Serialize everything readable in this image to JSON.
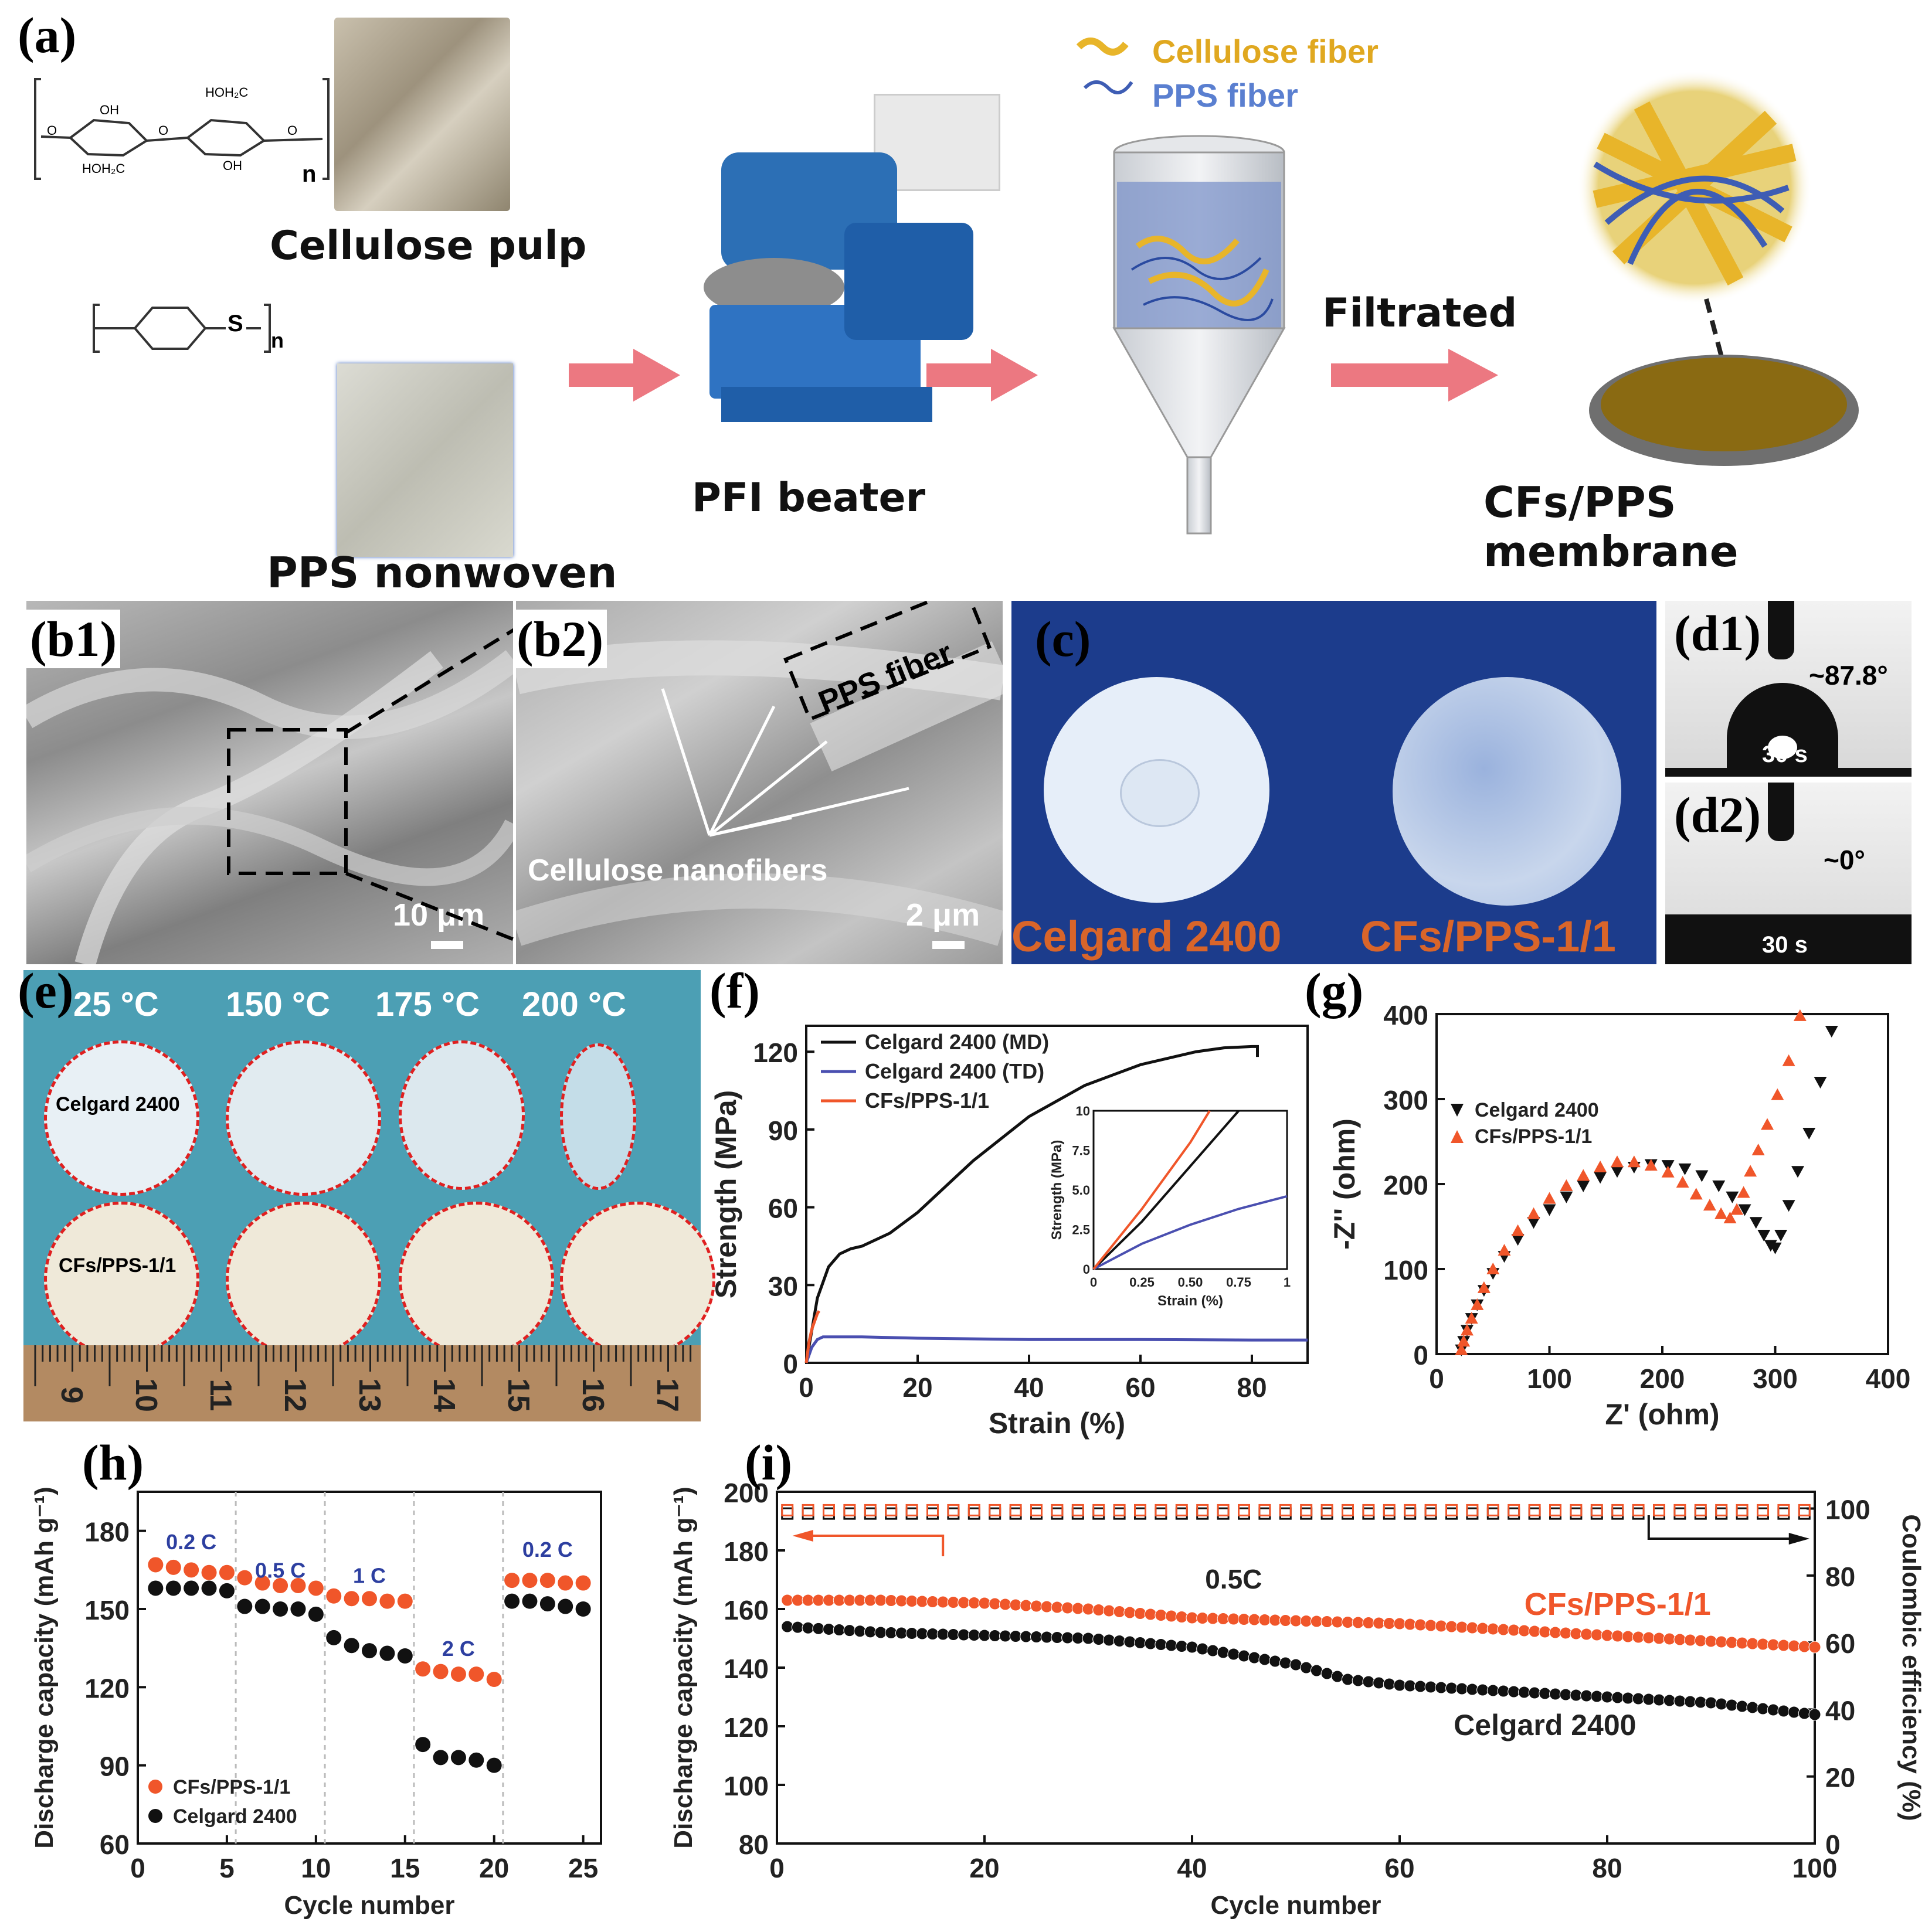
{
  "panel_a": {
    "label": "(a)",
    "cellulose_pulp": "Cellulose pulp",
    "pps_nonwoven": "PPS nonwoven",
    "pfi_beater": "PFI beater",
    "filtrated": "Filtrated",
    "membrane": "CFs/PPS membrane",
    "legend_cellulose": "Cellulose fiber",
    "legend_pps": "PPS fiber",
    "formula_n1": "n",
    "formula_s": "S",
    "formula_n2": "n"
  },
  "panel_b": {
    "label_b1": "(b1)",
    "label_b2": "(b2)",
    "scale_b1": "10 μm",
    "scale_b2": "2 μm",
    "pps_fiber": "PPS fiber",
    "nanofibers": "Cellulose nanofibers"
  },
  "panel_c": {
    "label": "(c)",
    "left": "Celgard 2400",
    "right": "CFs/PPS-1/1"
  },
  "panel_d": {
    "label_d1": "(d1)",
    "label_d2": "(d2)",
    "angle_d1": "~87.8°",
    "angle_d2": "~0°",
    "time_d1": "30 s",
    "time_d2": "30 s"
  },
  "panel_e": {
    "label": "(e)",
    "temps": [
      "25 °C",
      "150 °C",
      "175 °C",
      "200 °C"
    ],
    "row1": "Celgard 2400",
    "row2": "CFs/PPS-1/1",
    "ruler": [
      "9",
      "10",
      "11",
      "12",
      "13",
      "14",
      "15",
      "16",
      "17"
    ]
  },
  "colors": {
    "black_series": "#111111",
    "blue_series": "#4a4fb0",
    "orange_series": "#f0562a",
    "pink_arrow": "#e9606b",
    "teal_bg": "#4c9fb4",
    "navy_bg": "#1c3c8c",
    "label_blue": "#2d3fa0"
  },
  "chart_data": [
    {
      "panel": "(f)",
      "type": "line",
      "xlabel": "Strain (%)",
      "ylabel": "Strength (MPa)",
      "xlim": [
        0,
        90
      ],
      "ylim": [
        0,
        130
      ],
      "xticks": [
        0,
        20,
        40,
        60,
        80
      ],
      "yticks": [
        0,
        30,
        60,
        90,
        120
      ],
      "legend": "top-left",
      "series": [
        {
          "name": "Celgard 2400 (MD)",
          "x": [
            0,
            2,
            4,
            6,
            8,
            10,
            15,
            20,
            25,
            30,
            40,
            50,
            60,
            70,
            75,
            80,
            81,
            81
          ],
          "y": [
            0,
            25,
            37,
            42,
            44,
            45,
            50,
            58,
            68,
            78,
            95,
            107,
            115,
            120,
            121.5,
            122,
            122,
            118
          ]
        },
        {
          "name": "Celgard 2400 (TD)",
          "x": [
            0,
            1,
            2,
            3,
            5,
            10,
            20,
            40,
            60,
            80,
            90
          ],
          "y": [
            0,
            6,
            9,
            10,
            10,
            10,
            9.5,
            9,
            9,
            8.8,
            8.8
          ]
        },
        {
          "name": "CFs/PPS-1/1",
          "x": [
            0,
            0.5,
            1,
            1.5,
            2,
            2.3
          ],
          "y": [
            0,
            8,
            13,
            16,
            19,
            20
          ]
        }
      ],
      "inset": {
        "xlabel": "Strain (%)",
        "ylabel": "Strength (MPa)",
        "xlim": [
          0,
          1
        ],
        "ylim": [
          0,
          10
        ],
        "xticks": [
          "0",
          "0.25",
          "0.50",
          "0.75",
          "1"
        ],
        "yticks": [
          "0",
          "2.5",
          "5.0",
          "7.5",
          "10"
        ],
        "series": [
          {
            "name": "Celgard 2400 (MD)",
            "x": [
              0,
              0.25,
              0.5,
              0.75
            ],
            "y": [
              0,
              3.0,
              6.5,
              10
            ]
          },
          {
            "name": "Celgard 2400 (TD)",
            "x": [
              0,
              0.25,
              0.5,
              0.75,
              1.0
            ],
            "y": [
              0,
              1.6,
              2.8,
              3.8,
              4.6
            ]
          },
          {
            "name": "CFs/PPS-1/1",
            "x": [
              0,
              0.25,
              0.5,
              0.6
            ],
            "y": [
              0,
              3.8,
              8.0,
              10
            ]
          }
        ]
      }
    },
    {
      "panel": "(g)",
      "type": "scatter",
      "xlabel": "Z' (ohm)",
      "ylabel": "-Z'' (ohm)",
      "xlim": [
        0,
        400
      ],
      "ylim": [
        0,
        400
      ],
      "xticks": [
        0,
        100,
        200,
        300,
        400
      ],
      "yticks": [
        0,
        100,
        200,
        300,
        400
      ],
      "legend": "left",
      "series": [
        {
          "name": "Celgard 2400",
          "x": [
            22,
            24,
            27,
            31,
            36,
            42,
            50,
            60,
            72,
            86,
            100,
            115,
            130,
            145,
            160,
            175,
            190,
            205,
            220,
            235,
            250,
            262,
            273,
            283,
            290,
            296,
            300,
            305,
            312,
            320,
            330,
            340,
            350
          ],
          "y": [
            5,
            15,
            28,
            42,
            58,
            75,
            95,
            115,
            135,
            155,
            170,
            185,
            198,
            208,
            215,
            220,
            223,
            222,
            218,
            210,
            198,
            185,
            170,
            155,
            140,
            128,
            125,
            140,
            175,
            215,
            260,
            320,
            380
          ]
        },
        {
          "name": "CFs/PPS-1/1",
          "x": [
            22,
            24,
            27,
            31,
            36,
            42,
            50,
            60,
            72,
            86,
            100,
            115,
            130,
            145,
            160,
            175,
            190,
            205,
            218,
            230,
            242,
            252,
            260,
            266,
            272,
            278,
            285,
            293,
            302,
            312,
            322
          ],
          "y": [
            5,
            15,
            28,
            42,
            58,
            78,
            100,
            122,
            145,
            165,
            183,
            198,
            210,
            220,
            226,
            226,
            222,
            214,
            202,
            188,
            175,
            165,
            160,
            170,
            190,
            215,
            240,
            270,
            305,
            345,
            398
          ]
        }
      ]
    },
    {
      "panel": "(h)",
      "type": "scatter",
      "xlabel": "Cycle number",
      "ylabel": "Discharge capacity (mAh g⁻¹)",
      "xlim": [
        0,
        26
      ],
      "ylim": [
        60,
        195
      ],
      "xticks": [
        0,
        5,
        10,
        15,
        20,
        25
      ],
      "yticks": [
        60,
        90,
        120,
        150,
        180
      ],
      "rate_labels": [
        "0.2 C",
        "0.5 C",
        "1 C",
        "2 C",
        "0.2 C"
      ],
      "legend": "bottom-left",
      "series": [
        {
          "name": "CFs/PPS-1/1",
          "x": [
            1,
            2,
            3,
            4,
            5,
            6,
            7,
            8,
            9,
            10,
            11,
            12,
            13,
            14,
            15,
            16,
            17,
            18,
            19,
            20,
            21,
            22,
            23,
            24,
            25
          ],
          "y": [
            167,
            166,
            165,
            164,
            164,
            162,
            160,
            159,
            159,
            158,
            155,
            154,
            154,
            153,
            153,
            127,
            126,
            125,
            125,
            123,
            161,
            161,
            161,
            160,
            160
          ]
        },
        {
          "name": "Celgard 2400",
          "x": [
            1,
            2,
            3,
            4,
            5,
            6,
            7,
            8,
            9,
            10,
            11,
            12,
            13,
            14,
            15,
            16,
            17,
            18,
            19,
            20,
            21,
            22,
            23,
            24,
            25
          ],
          "y": [
            158,
            158,
            158,
            158,
            157,
            151,
            151,
            150,
            150,
            148,
            139,
            136,
            134,
            133,
            132,
            98,
            93,
            93,
            92,
            90,
            153,
            153,
            152,
            151,
            150
          ]
        }
      ]
    },
    {
      "panel": "(i)",
      "type": "scatter",
      "xlabel": "Cycle number",
      "ylabel": "Discharge capacity (mAh g⁻¹)",
      "ylabel_right": "Coulombic efficiency (%)",
      "xlim": [
        0,
        100
      ],
      "ylim": [
        80,
        200
      ],
      "ylim_right": [
        0,
        105
      ],
      "xticks": [
        0,
        20,
        40,
        60,
        80,
        100
      ],
      "yticks": [
        80,
        100,
        120,
        140,
        160,
        180,
        200
      ],
      "yticks_right": [
        0,
        20,
        40,
        60,
        80,
        100
      ],
      "annotations": [
        "0.5C",
        "CFs/PPS-1/1",
        "Celgard 2400"
      ],
      "series": [
        {
          "name": "CFs/PPS-1/1",
          "x": [
            1,
            10,
            20,
            30,
            40,
            50,
            60,
            70,
            80,
            90,
            100
          ],
          "y": [
            163,
            163,
            162,
            160,
            157,
            156,
            155,
            153,
            151,
            149,
            147
          ]
        },
        {
          "name": "Celgard 2400",
          "x": [
            1,
            10,
            20,
            30,
            40,
            50,
            55,
            60,
            70,
            80,
            90,
            100
          ],
          "y": [
            154,
            152,
            151,
            150,
            147,
            141,
            136,
            134,
            132,
            130,
            128,
            124
          ]
        },
        {
          "name": "CFs/PPS-1/1 efficiency",
          "x": [
            1,
            100
          ],
          "y_right": [
            99.5,
            99.5
          ]
        },
        {
          "name": "Celgard 2400 efficiency",
          "x": [
            1,
            100
          ],
          "y_right": [
            98.5,
            98.5
          ]
        }
      ]
    }
  ]
}
